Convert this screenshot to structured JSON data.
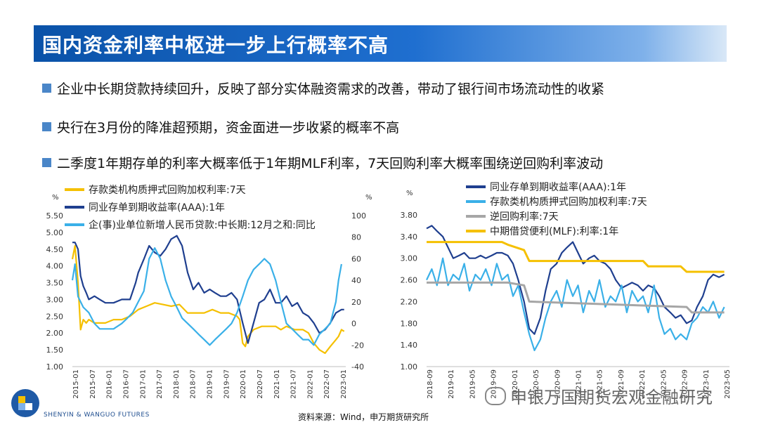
{
  "slide": {
    "title": "国内资金利率中枢进一步上行概率不高",
    "bullets": [
      "企业中长期贷款持续回升，反映了部分实体融资需求的改善，带动了银行间市场流动性的收紧",
      "央行在3月份的降准超预期，资金面进一步收紧的概率不高",
      "二季度1年期存单的利率大概率低于1年期MLF利率，7天回购利率大概率围绕逆回购利率波动"
    ],
    "source": "资料来源：Wind，申万期货研究所",
    "watermark": "申银万国期货宏观金融研究",
    "logo_text": "SHENYIN & WANGUO FUTURES",
    "bullet_color": "#4a86c8"
  },
  "chart_data": [
    {
      "type": "line",
      "left_unit": "%",
      "right_unit": "%",
      "y_left_ticks": [
        "5.50",
        "5.00",
        "4.50",
        "4.00",
        "3.50",
        "3.00",
        "2.50",
        "2.00",
        "1.50",
        "1.00"
      ],
      "y_right_ticks": [
        "100",
        "80",
        "60",
        "40",
        "20",
        "0",
        "-20",
        "-40"
      ],
      "ylim_left": [
        1.0,
        5.5
      ],
      "ylim_right": [
        -40,
        100
      ],
      "x_ticks": [
        "2015-01",
        "2015-07",
        "2016-01",
        "2016-07",
        "2017-01",
        "2017-07",
        "2018-01",
        "2018-07",
        "2019-01",
        "2019-07",
        "2020-01",
        "2020-07",
        "2021-01",
        "2021-07",
        "2022-01",
        "2022-07",
        "2023-01"
      ],
      "x_start": 2015.0,
      "x_end": 2023.3,
      "legend_position": "top",
      "series": [
        {
          "name": "存款类机构质押式回购加权利率:7天",
          "axis": "left",
          "color": "#f5c000",
          "x": [
            2015.0,
            2015.08,
            2015.17,
            2015.25,
            2015.33,
            2015.42,
            2015.5,
            2015.67,
            2015.83,
            2016.0,
            2016.25,
            2016.5,
            2016.75,
            2017.0,
            2017.25,
            2017.5,
            2017.75,
            2018.0,
            2018.25,
            2018.5,
            2018.75,
            2019.0,
            2019.25,
            2019.5,
            2019.75,
            2020.0,
            2020.08,
            2020.17,
            2020.25,
            2020.33,
            2020.5,
            2020.75,
            2021.0,
            2021.17,
            2021.33,
            2021.5,
            2021.75,
            2022.0,
            2022.17,
            2022.33,
            2022.5,
            2022.67,
            2022.83,
            2023.0,
            2023.08,
            2023.17,
            2023.25
          ],
          "y": [
            4.2,
            4.6,
            3.5,
            2.1,
            2.4,
            2.3,
            2.4,
            2.3,
            2.3,
            2.3,
            2.4,
            2.4,
            2.5,
            2.7,
            2.8,
            2.9,
            2.85,
            2.8,
            2.85,
            2.6,
            2.6,
            2.6,
            2.7,
            2.6,
            2.6,
            2.5,
            2.4,
            1.7,
            1.6,
            1.9,
            2.1,
            2.2,
            2.2,
            2.2,
            2.1,
            2.2,
            2.1,
            2.1,
            2.0,
            1.7,
            1.5,
            1.4,
            1.6,
            1.8,
            1.9,
            2.1,
            2.05
          ]
        },
        {
          "name": "同业存单到期收益率(AAA):1年",
          "axis": "left",
          "color": "#1f3f8f",
          "x": [
            2015.0,
            2015.08,
            2015.17,
            2015.25,
            2015.33,
            2015.42,
            2015.5,
            2015.67,
            2015.83,
            2016.0,
            2016.25,
            2016.5,
            2016.75,
            2016.92,
            2017.0,
            2017.17,
            2017.33,
            2017.5,
            2017.67,
            2017.83,
            2018.0,
            2018.17,
            2018.33,
            2018.5,
            2018.67,
            2018.83,
            2019.0,
            2019.17,
            2019.33,
            2019.5,
            2019.67,
            2019.83,
            2020.0,
            2020.17,
            2020.33,
            2020.5,
            2020.67,
            2020.83,
            2021.0,
            2021.17,
            2021.33,
            2021.5,
            2021.67,
            2021.83,
            2022.0,
            2022.17,
            2022.33,
            2022.5,
            2022.67,
            2022.83,
            2023.0,
            2023.17,
            2023.25
          ],
          "y": [
            4.7,
            4.7,
            4.5,
            3.7,
            3.4,
            3.2,
            3.0,
            3.1,
            3.0,
            2.9,
            2.9,
            3.0,
            3.0,
            3.5,
            3.8,
            4.2,
            4.6,
            4.4,
            4.3,
            4.5,
            4.8,
            4.9,
            4.6,
            3.8,
            3.3,
            3.5,
            3.2,
            3.3,
            3.2,
            3.1,
            3.1,
            3.2,
            3.0,
            2.3,
            1.7,
            2.3,
            2.9,
            3.0,
            3.3,
            2.9,
            2.9,
            3.1,
            2.8,
            2.9,
            2.6,
            2.5,
            2.3,
            2.0,
            2.1,
            2.3,
            2.6,
            2.7,
            2.7
          ]
        },
        {
          "name": "企(事)业单位新增人民币贷款:中长期:12月之和:同比",
          "axis": "right",
          "color": "#3ab0e8",
          "x": [
            2015.0,
            2015.08,
            2015.17,
            2015.33,
            2015.5,
            2015.67,
            2015.83,
            2016.0,
            2016.25,
            2016.5,
            2016.67,
            2016.83,
            2017.0,
            2017.17,
            2017.33,
            2017.5,
            2017.67,
            2017.83,
            2018.0,
            2018.17,
            2018.33,
            2018.5,
            2018.67,
            2018.83,
            2019.0,
            2019.17,
            2019.33,
            2019.5,
            2019.67,
            2019.83,
            2020.0,
            2020.17,
            2020.33,
            2020.5,
            2020.67,
            2020.83,
            2021.0,
            2021.17,
            2021.33,
            2021.5,
            2021.67,
            2021.83,
            2022.0,
            2022.17,
            2022.33,
            2022.5,
            2022.67,
            2022.83,
            2023.0,
            2023.08,
            2023.17
          ],
          "y": [
            40,
            55,
            25,
            15,
            10,
            0,
            -5,
            -5,
            -5,
            0,
            5,
            10,
            20,
            30,
            60,
            70,
            60,
            40,
            25,
            15,
            5,
            0,
            -5,
            -10,
            -15,
            -20,
            -15,
            -10,
            -5,
            0,
            10,
            25,
            40,
            50,
            55,
            60,
            55,
            40,
            20,
            0,
            -5,
            -10,
            -15,
            -15,
            -20,
            -10,
            -5,
            0,
            20,
            40,
            55
          ]
        }
      ]
    },
    {
      "type": "line",
      "left_unit": "%",
      "y_left_ticks": [
        "3.80",
        "3.40",
        "3.00",
        "2.60",
        "2.20",
        "1.80",
        "1.40",
        "1.00"
      ],
      "ylim_left": [
        1.0,
        3.8
      ],
      "x_ticks": [
        "2018-09",
        "2019-01",
        "2019-05",
        "2019-09",
        "2020-01",
        "2020-05",
        "2020-09",
        "2021-01",
        "2021-05",
        "2021-09",
        "2022-01",
        "2022-05",
        "2022-09",
        "2023-01",
        "2023-05"
      ],
      "x_start": 2018.67,
      "x_end": 2023.33,
      "legend_position": "top",
      "series": [
        {
          "name": "同业存单到期收益率(AAA):1年",
          "axis": "left",
          "color": "#1f3f8f",
          "x": [
            2018.67,
            2018.75,
            2018.83,
            2018.92,
            2019.0,
            2019.08,
            2019.17,
            2019.25,
            2019.33,
            2019.42,
            2019.5,
            2019.58,
            2019.67,
            2019.75,
            2019.83,
            2019.92,
            2020.0,
            2020.08,
            2020.17,
            2020.25,
            2020.33,
            2020.42,
            2020.5,
            2020.58,
            2020.67,
            2020.75,
            2020.83,
            2020.92,
            2021.0,
            2021.08,
            2021.17,
            2021.25,
            2021.33,
            2021.42,
            2021.5,
            2021.58,
            2021.67,
            2021.75,
            2021.83,
            2021.92,
            2022.0,
            2022.08,
            2022.17,
            2022.25,
            2022.33,
            2022.42,
            2022.5,
            2022.58,
            2022.67,
            2022.75,
            2022.83,
            2022.92,
            2023.0,
            2023.08,
            2023.17,
            2023.25
          ],
          "y": [
            3.55,
            3.6,
            3.5,
            3.4,
            3.2,
            3.0,
            3.05,
            3.1,
            3.0,
            3.0,
            3.05,
            3.0,
            3.05,
            3.1,
            3.1,
            3.05,
            2.9,
            2.6,
            2.2,
            1.7,
            1.6,
            1.9,
            2.4,
            2.8,
            2.9,
            3.1,
            3.2,
            3.3,
            3.1,
            2.9,
            3.0,
            3.05,
            2.95,
            2.9,
            2.8,
            2.6,
            2.45,
            2.5,
            2.55,
            2.5,
            2.4,
            2.5,
            2.45,
            2.3,
            2.1,
            2.0,
            1.9,
            1.95,
            1.8,
            1.85,
            2.1,
            2.3,
            2.6,
            2.7,
            2.65,
            2.7
          ]
        },
        {
          "name": "存款类机构质押式回购加权利率:7天",
          "axis": "left",
          "color": "#3ab0e8",
          "x": [
            2018.67,
            2018.75,
            2018.83,
            2018.92,
            2019.0,
            2019.08,
            2019.17,
            2019.25,
            2019.33,
            2019.42,
            2019.5,
            2019.58,
            2019.67,
            2019.75,
            2019.83,
            2019.92,
            2020.0,
            2020.08,
            2020.17,
            2020.25,
            2020.33,
            2020.42,
            2020.5,
            2020.58,
            2020.67,
            2020.75,
            2020.83,
            2020.92,
            2021.0,
            2021.08,
            2021.17,
            2021.25,
            2021.33,
            2021.42,
            2021.5,
            2021.58,
            2021.67,
            2021.75,
            2021.83,
            2021.92,
            2022.0,
            2022.08,
            2022.17,
            2022.25,
            2022.33,
            2022.42,
            2022.5,
            2022.58,
            2022.67,
            2022.75,
            2022.83,
            2022.92,
            2023.0,
            2023.08,
            2023.17,
            2023.25
          ],
          "y": [
            2.6,
            2.8,
            2.5,
            3.0,
            2.5,
            2.7,
            2.6,
            2.9,
            2.4,
            2.7,
            2.6,
            2.8,
            2.5,
            2.9,
            2.6,
            2.7,
            2.3,
            2.5,
            2.0,
            1.6,
            1.3,
            1.5,
            1.9,
            2.2,
            2.4,
            2.1,
            2.6,
            2.3,
            2.5,
            2.0,
            2.4,
            2.2,
            2.6,
            2.1,
            2.3,
            2.2,
            2.5,
            2.0,
            2.4,
            2.2,
            2.3,
            2.0,
            2.5,
            1.9,
            1.6,
            1.7,
            1.5,
            1.6,
            1.5,
            1.8,
            1.9,
            2.1,
            2.0,
            2.2,
            1.9,
            2.1
          ]
        },
        {
          "name": "逆回购利率:7天",
          "axis": "left",
          "color": "#a6a6a6",
          "x": [
            2018.67,
            2019.92,
            2020.17,
            2020.25,
            2022.67,
            2022.75,
            2023.25
          ],
          "y": [
            2.55,
            2.55,
            2.5,
            2.2,
            2.1,
            2.0,
            2.0
          ]
        },
        {
          "name": "中期借贷便利(MLF):利率:1年",
          "axis": "left",
          "color": "#f5c000",
          "x": [
            2018.67,
            2019.83,
            2019.92,
            2020.17,
            2020.25,
            2022.0,
            2022.08,
            2022.58,
            2022.67,
            2023.25
          ],
          "y": [
            3.3,
            3.3,
            3.25,
            3.15,
            2.95,
            2.95,
            2.85,
            2.85,
            2.75,
            2.75
          ]
        }
      ]
    }
  ]
}
